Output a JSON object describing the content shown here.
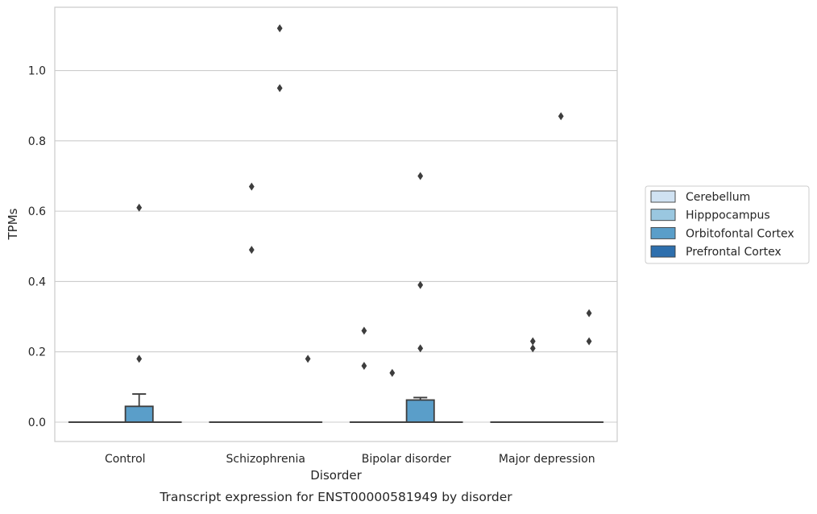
{
  "chart_data": {
    "type": "box",
    "caption": "Transcript expression for ENST00000581949 by disorder",
    "xlabel": "Disorder",
    "ylabel": "TPMs",
    "ylim": [
      -0.055,
      1.18
    ],
    "yticks": [
      0.0,
      0.2,
      0.4,
      0.6,
      0.8,
      1.0
    ],
    "ytick_labels": [
      "0.0",
      "0.2",
      "0.4",
      "0.6",
      "0.8",
      "1.0"
    ],
    "grid": "horizontal",
    "legend_position": "right",
    "categories": [
      "Control",
      "Schizophrenia",
      "Bipolar disorder",
      "Major depression"
    ],
    "series": [
      {
        "name": "Cerebellum",
        "color": "#d0e2f2",
        "boxes": [
          {
            "q1": 0,
            "median": 0,
            "q3": 0,
            "whisker_low": 0,
            "whisker_high": 0,
            "outliers": []
          },
          {
            "q1": 0,
            "median": 0,
            "q3": 0,
            "whisker_low": 0,
            "whisker_high": 0,
            "outliers": []
          },
          {
            "q1": 0,
            "median": 0,
            "q3": 0,
            "whisker_low": 0,
            "whisker_high": 0,
            "outliers": [
              0.16,
              0.26
            ]
          },
          {
            "q1": 0,
            "median": 0,
            "q3": 0,
            "whisker_low": 0,
            "whisker_high": 0,
            "outliers": []
          }
        ]
      },
      {
        "name": "Hipppocampus",
        "color": "#9ac7e0",
        "boxes": [
          {
            "q1": 0,
            "median": 0,
            "q3": 0,
            "whisker_low": 0,
            "whisker_high": 0,
            "outliers": []
          },
          {
            "q1": 0,
            "median": 0,
            "q3": 0,
            "whisker_low": 0,
            "whisker_high": 0,
            "outliers": [
              0.49,
              0.67
            ]
          },
          {
            "q1": 0,
            "median": 0,
            "q3": 0,
            "whisker_low": 0,
            "whisker_high": 0,
            "outliers": [
              0.14
            ]
          },
          {
            "q1": 0,
            "median": 0,
            "q3": 0,
            "whisker_low": 0,
            "whisker_high": 0,
            "outliers": [
              0.21,
              0.23
            ]
          }
        ]
      },
      {
        "name": "Orbitofontal Cortex",
        "color": "#5a9ec9",
        "boxes": [
          {
            "q1": 0,
            "median": 0,
            "q3": 0.045,
            "whisker_low": 0,
            "whisker_high": 0.08,
            "outliers": [
              0.18,
              0.61
            ]
          },
          {
            "q1": 0,
            "median": 0,
            "q3": 0,
            "whisker_low": 0,
            "whisker_high": 0,
            "outliers": [
              0.95,
              1.12
            ]
          },
          {
            "q1": 0,
            "median": 0,
            "q3": 0.063,
            "whisker_low": 0,
            "whisker_high": 0.07,
            "outliers": [
              0.21,
              0.39,
              0.7
            ]
          },
          {
            "q1": 0,
            "median": 0,
            "q3": 0,
            "whisker_low": 0,
            "whisker_high": 0,
            "outliers": [
              0.87
            ]
          }
        ]
      },
      {
        "name": "Prefrontal Cortex",
        "color": "#2e6fad",
        "boxes": [
          {
            "q1": 0,
            "median": 0,
            "q3": 0,
            "whisker_low": 0,
            "whisker_high": 0,
            "outliers": []
          },
          {
            "q1": 0,
            "median": 0,
            "q3": 0,
            "whisker_low": 0,
            "whisker_high": 0,
            "outliers": [
              0.18
            ]
          },
          {
            "q1": 0,
            "median": 0,
            "q3": 0,
            "whisker_low": 0,
            "whisker_high": 0,
            "outliers": []
          },
          {
            "q1": 0,
            "median": 0,
            "q3": 0,
            "whisker_low": 0,
            "whisker_high": 0,
            "outliers": [
              0.23,
              0.31
            ]
          }
        ]
      }
    ]
  }
}
